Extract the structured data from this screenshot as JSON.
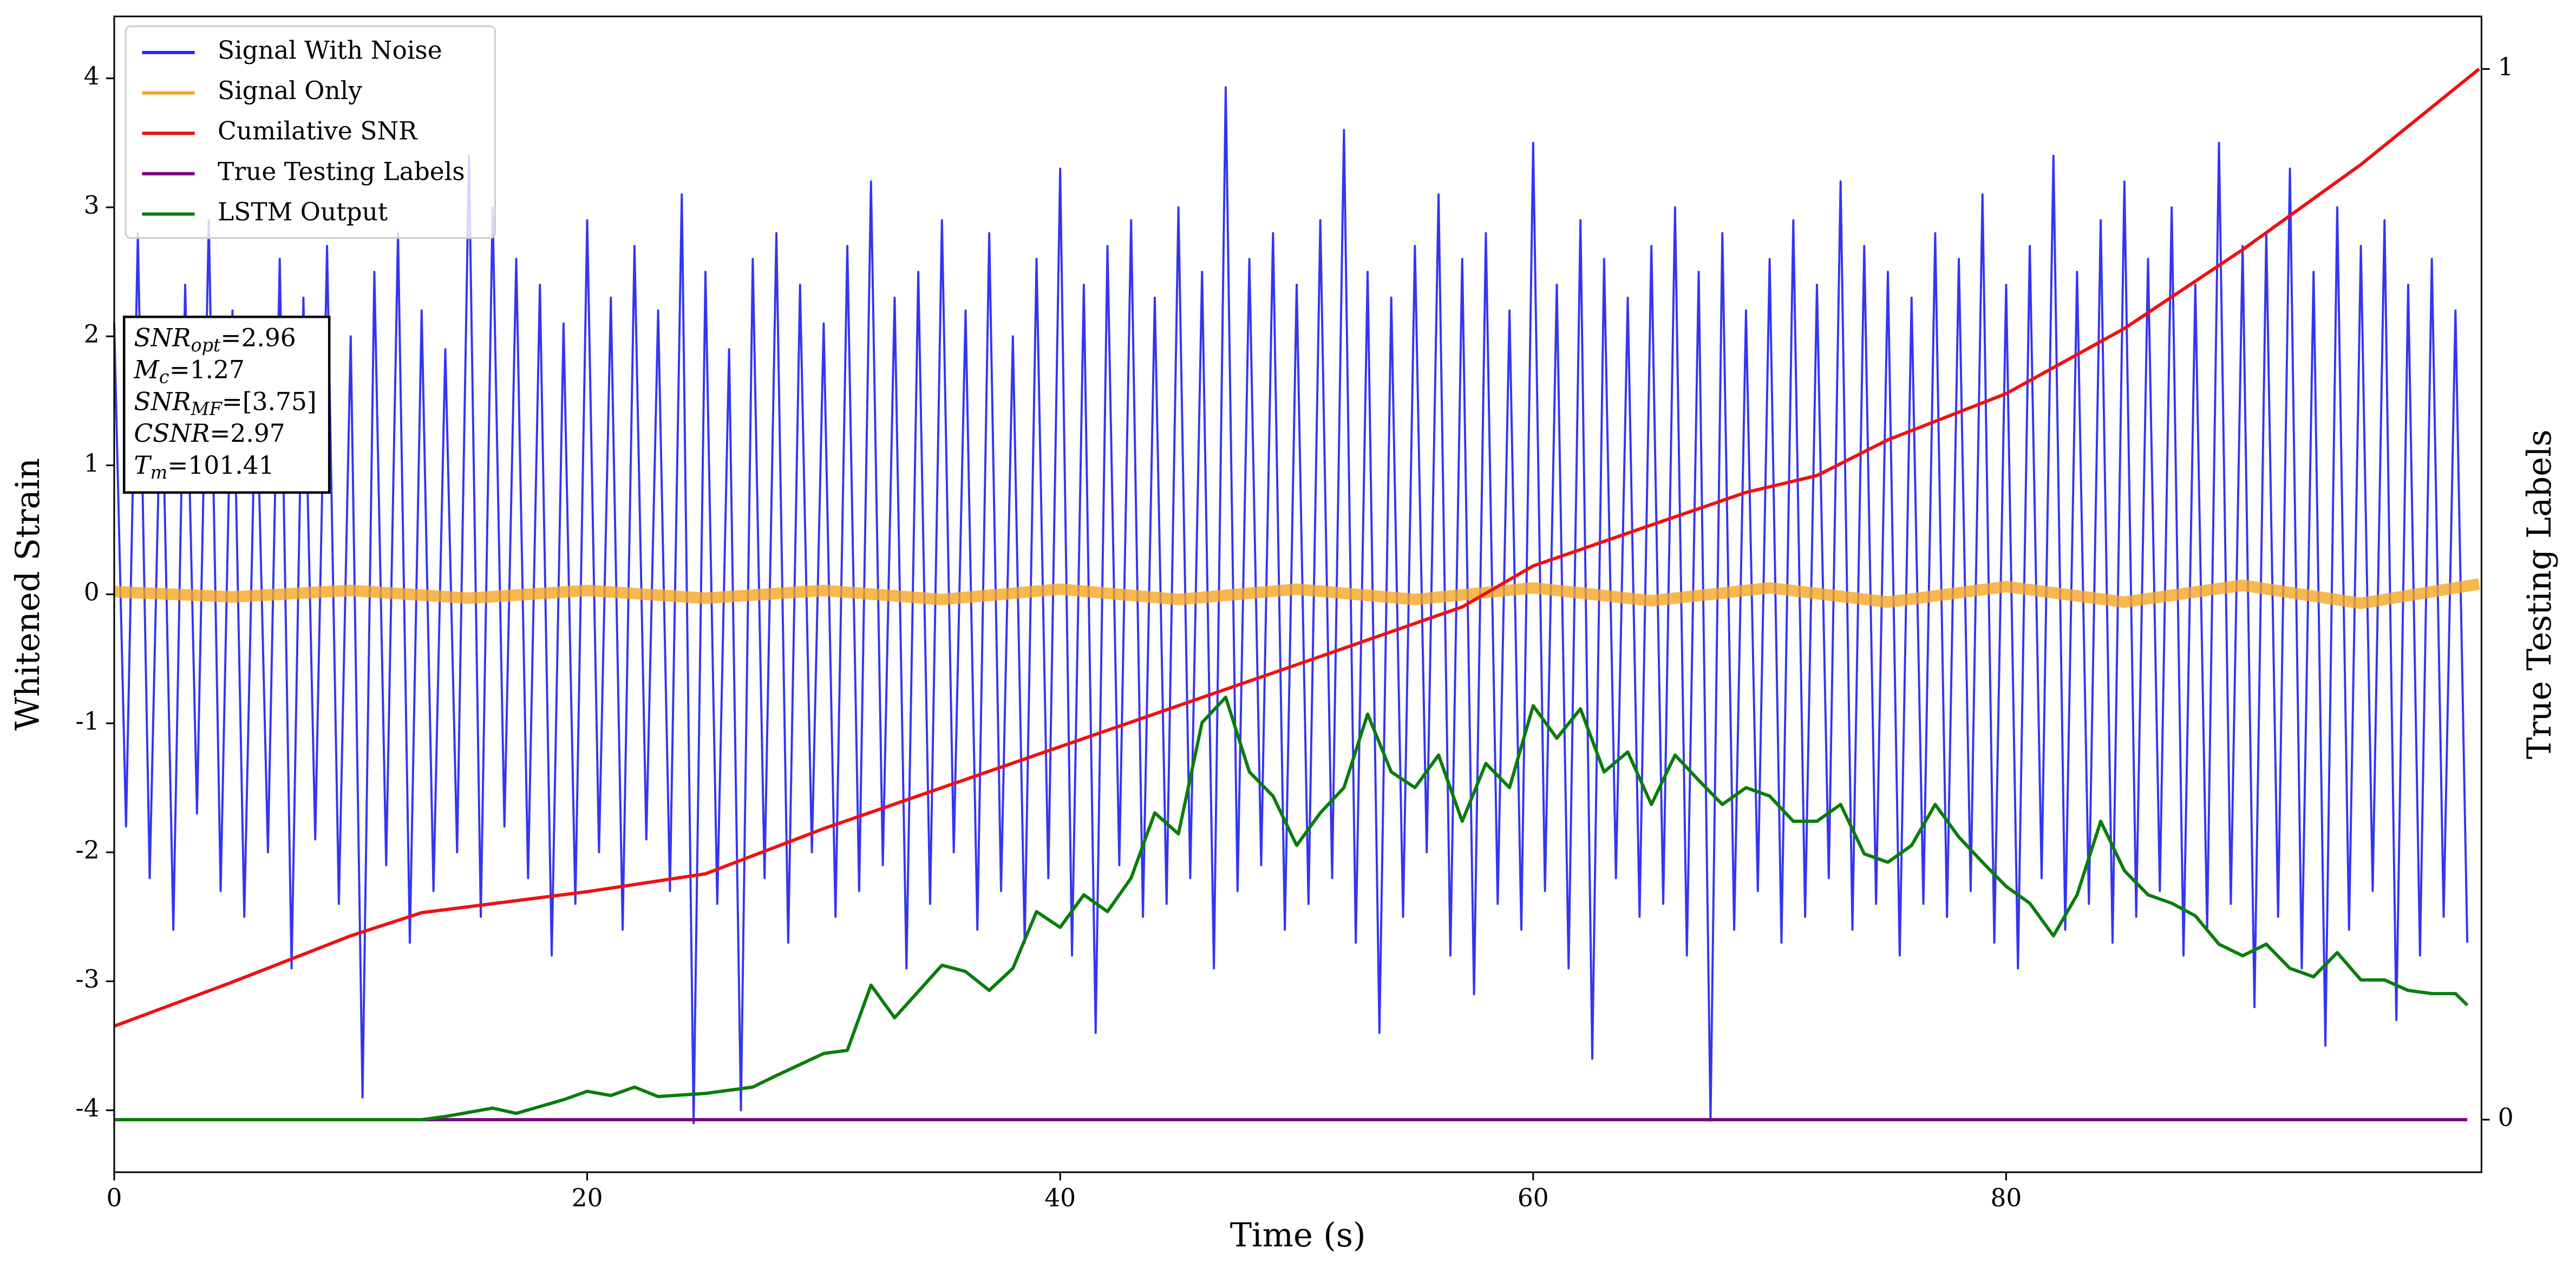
{
  "chart_data": {
    "type": "line",
    "xlabel": "Time (s)",
    "ylabel": "Whitened Strain",
    "y2label": "True Testing Labels",
    "xlim": [
      0,
      100.1
    ],
    "xticks": [
      0,
      20,
      40,
      60,
      80
    ],
    "ylim": [
      -4.48,
      4.48
    ],
    "yticks": [
      -4,
      -3,
      -2,
      -1,
      0,
      1,
      2,
      3,
      4
    ],
    "y2lim": [
      -0.05,
      1.05
    ],
    "y2ticks": [
      0,
      1
    ],
    "legend": "upper left",
    "annotation": [
      {
        "base": "SNR",
        "sub": "opt",
        "rest": "=2.96"
      },
      {
        "base": "M",
        "sub": "c",
        "rest": "=1.27"
      },
      {
        "base": "SNR",
        "sub": "MF",
        "rest": "=[3.75]"
      },
      {
        "base": "CSNR",
        "sub": "",
        "rest": "=2.97"
      },
      {
        "base": "T",
        "sub": "m",
        "rest": "=101.41"
      }
    ],
    "series": [
      {
        "name": "Signal With Noise",
        "color": "#2a2af0",
        "axis": "y",
        "x": [
          0,
          0.5,
          1,
          1.5,
          2,
          2.5,
          3,
          3.5,
          4,
          4.5,
          5,
          5.5,
          6,
          6.5,
          7,
          7.5,
          8,
          8.5,
          9,
          9.5,
          10,
          10.5,
          11,
          11.5,
          12,
          12.5,
          13,
          13.5,
          14,
          14.5,
          15,
          15.5,
          16,
          16.5,
          17,
          17.5,
          18,
          18.5,
          19,
          19.5,
          20,
          20.5,
          21,
          21.5,
          22,
          22.5,
          23,
          23.5,
          24,
          24.5,
          25,
          25.5,
          26,
          26.5,
          27,
          27.5,
          28,
          28.5,
          29,
          29.5,
          30,
          30.5,
          31,
          31.5,
          32,
          32.5,
          33,
          33.5,
          34,
          34.5,
          35,
          35.5,
          36,
          36.5,
          37,
          37.5,
          38,
          38.5,
          39,
          39.5,
          40,
          40.5,
          41,
          41.5,
          42,
          42.5,
          43,
          43.5,
          44,
          44.5,
          45,
          45.5,
          46,
          46.5,
          47,
          47.5,
          48,
          48.5,
          49,
          49.5,
          50,
          50.5,
          51,
          51.5,
          52,
          52.5,
          53,
          53.5,
          54,
          54.5,
          55,
          55.5,
          56,
          56.5,
          57,
          57.5,
          58,
          58.5,
          59,
          59.5,
          60,
          60.5,
          61,
          61.5,
          62,
          62.5,
          63,
          63.5,
          64,
          64.5,
          65,
          65.5,
          66,
          66.5,
          67,
          67.5,
          68,
          68.5,
          69,
          69.5,
          70,
          70.5,
          71,
          71.5,
          72,
          72.5,
          73,
          73.5,
          74,
          74.5,
          75,
          75.5,
          76,
          76.5,
          77,
          77.5,
          78,
          78.5,
          79,
          79.5,
          80,
          80.5,
          81,
          81.5,
          82,
          82.5,
          83,
          83.5,
          84,
          84.5,
          85,
          85.5,
          86,
          86.5,
          87,
          87.5,
          88,
          88.5,
          89,
          89.5,
          90,
          90.5,
          91,
          91.5,
          92,
          92.5,
          93,
          93.5,
          94,
          94.5,
          95,
          95.5,
          96,
          96.5,
          97,
          97.5,
          98,
          98.5,
          99,
          99.5
        ],
        "values": [
          2.1,
          -1.8,
          2.8,
          -2.2,
          1.9,
          -2.6,
          2.4,
          -1.7,
          2.9,
          -2.3,
          2.2,
          -2.5,
          1.8,
          -2.0,
          2.6,
          -2.9,
          2.3,
          -1.9,
          2.7,
          -2.4,
          2.0,
          -3.9,
          2.5,
          -2.1,
          2.8,
          -2.7,
          2.2,
          -2.3,
          1.9,
          -2.0,
          3.4,
          -2.5,
          3.0,
          -1.8,
          2.6,
          -2.2,
          2.4,
          -2.8,
          2.1,
          -2.4,
          2.9,
          -2.0,
          2.3,
          -2.6,
          2.7,
          -1.9,
          2.2,
          -2.3,
          3.1,
          -4.1,
          2.5,
          -2.4,
          1.9,
          -4.0,
          2.6,
          -2.2,
          2.8,
          -2.7,
          2.4,
          -2.0,
          2.1,
          -2.5,
          2.7,
          -2.3,
          3.2,
          -2.1,
          2.3,
          -2.9,
          2.5,
          -2.4,
          2.9,
          -2.0,
          2.2,
          -2.6,
          2.8,
          -2.3,
          2.0,
          -2.7,
          2.6,
          -2.2,
          3.3,
          -2.8,
          2.4,
          -3.4,
          2.7,
          -2.1,
          2.9,
          -2.5,
          2.3,
          -2.4,
          3.0,
          -2.2,
          2.5,
          -2.9,
          3.93,
          -2.3,
          2.6,
          -2.1,
          2.8,
          -2.6,
          2.4,
          -2.4,
          2.9,
          -2.2,
          3.6,
          -2.7,
          2.5,
          -3.4,
          2.3,
          -2.5,
          2.7,
          -2.0,
          3.1,
          -2.8,
          2.6,
          -3.1,
          2.8,
          -2.4,
          2.2,
          -2.6,
          3.5,
          -2.3,
          2.4,
          -2.9,
          2.9,
          -3.6,
          2.6,
          -2.2,
          2.3,
          -2.5,
          2.7,
          -2.4,
          3.0,
          -2.8,
          2.5,
          -4.08,
          2.8,
          -2.6,
          2.2,
          -2.3,
          2.6,
          -2.7,
          2.9,
          -2.5,
          2.4,
          -2.2,
          3.2,
          -2.6,
          2.7,
          -2.4,
          2.5,
          -2.8,
          2.3,
          -2.4,
          2.8,
          -2.5,
          2.6,
          -2.3,
          3.1,
          -2.7,
          2.4,
          -2.9,
          2.7,
          -2.2,
          3.4,
          -2.6,
          2.5,
          -2.4,
          2.9,
          -2.7,
          3.2,
          -2.5,
          2.6,
          -2.3,
          3.0,
          -2.8,
          2.4,
          -2.6,
          3.5,
          -2.4,
          2.7,
          -3.2,
          2.8,
          -2.5,
          3.3,
          -2.9,
          2.5,
          -3.5,
          3.0,
          -2.6,
          2.7,
          -2.3,
          2.9,
          -3.3,
          2.4,
          -2.8,
          2.6,
          -2.5,
          2.2,
          -2.7
        ]
      },
      {
        "name": "Signal Only",
        "color": "#f5a623",
        "axis": "y",
        "x": [
          0,
          5,
          10,
          15,
          20,
          25,
          30,
          35,
          40,
          45,
          50,
          55,
          60,
          65,
          70,
          75,
          80,
          85,
          90,
          95,
          100
        ],
        "values": [
          0.02,
          -0.02,
          0.03,
          -0.03,
          0.03,
          -0.03,
          0.03,
          -0.04,
          0.04,
          -0.04,
          0.04,
          -0.04,
          0.05,
          -0.05,
          0.05,
          -0.06,
          0.06,
          -0.06,
          0.07,
          -0.07,
          0.08
        ]
      },
      {
        "name": "Cumilative SNR",
        "color": "#ee1111",
        "axis": "y2",
        "x": [
          0,
          5,
          10,
          13,
          20,
          25,
          30,
          40,
          50,
          57,
          60,
          65,
          69,
          72,
          75,
          80,
          85,
          90,
          95,
          100
        ],
        "values": [
          0.089,
          0.131,
          0.175,
          0.197,
          0.217,
          0.234,
          0.277,
          0.355,
          0.433,
          0.488,
          0.527,
          0.566,
          0.597,
          0.613,
          0.647,
          0.691,
          0.753,
          0.828,
          0.909,
          1.0
        ]
      },
      {
        "name": "True Testing Labels",
        "color": "#800080",
        "axis": "y2",
        "x": [
          0,
          99.5
        ],
        "values": [
          0,
          0
        ]
      },
      {
        "name": "LSTM Output",
        "color": "#0a7d0a",
        "axis": "y2",
        "x": [
          0,
          13,
          14,
          16,
          17,
          19,
          20,
          21,
          22,
          23,
          25,
          27,
          28,
          30,
          31,
          32,
          33,
          35,
          36,
          37,
          38,
          39,
          40,
          41,
          42,
          43,
          44,
          45,
          46,
          47,
          48,
          49,
          50,
          51,
          52,
          53,
          54,
          55,
          56,
          57,
          58,
          59,
          60,
          61,
          62,
          63,
          64,
          65,
          66,
          67,
          68,
          69,
          70,
          71,
          72,
          73,
          74,
          75,
          76,
          77,
          78,
          79,
          80,
          81,
          82,
          83,
          84,
          85,
          86,
          87,
          88,
          89,
          90,
          91,
          92,
          93,
          94,
          95,
          96,
          97,
          98,
          99,
          99.5
        ],
        "values": [
          0,
          0,
          0.003,
          0.011,
          0.006,
          0.019,
          0.027,
          0.023,
          0.031,
          0.022,
          0.025,
          0.031,
          0.042,
          0.063,
          0.066,
          0.128,
          0.097,
          0.147,
          0.141,
          0.123,
          0.144,
          0.198,
          0.183,
          0.214,
          0.198,
          0.23,
          0.292,
          0.272,
          0.378,
          0.402,
          0.331,
          0.308,
          0.261,
          0.292,
          0.316,
          0.386,
          0.331,
          0.316,
          0.347,
          0.284,
          0.339,
          0.316,
          0.394,
          0.363,
          0.391,
          0.331,
          0.35,
          0.3,
          0.347,
          0.323,
          0.3,
          0.316,
          0.308,
          0.284,
          0.284,
          0.3,
          0.253,
          0.245,
          0.261,
          0.3,
          0.269,
          0.245,
          0.222,
          0.206,
          0.175,
          0.214,
          0.284,
          0.237,
          0.214,
          0.206,
          0.194,
          0.167,
          0.156,
          0.167,
          0.144,
          0.136,
          0.159,
          0.133,
          0.133,
          0.123,
          0.12,
          0.12,
          0.109
        ]
      }
    ]
  }
}
